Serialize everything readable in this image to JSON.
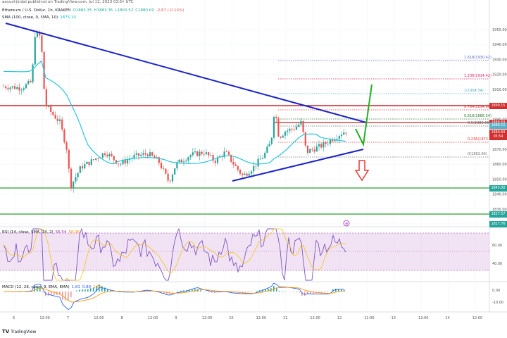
{
  "header": {
    "publisher_line": "aayushjindal published on TradingView.com, Jul 12, 2023 03:54 UTC"
  },
  "symbol_legend": {
    "name": "Ethereum / U.S. Dollar, 1h, KRAKEN",
    "open": "O1883.35",
    "high": "H1883.35",
    "low": "L1880.52",
    "close": "C1880.69",
    "change": "-2.67 (-0.14%)"
  },
  "sma_legend": {
    "label": "SMA (100, close, 0, SMA, 10)",
    "value": "1875.10"
  },
  "rsi_legend": {
    "label": "RSI (14, close, SMA, 14, 2)",
    "value1": "56.54",
    "value2": "58.96"
  },
  "macd_legend": {
    "label": "MACD (12, 26, close, 9, EMA, EMA)",
    "value1": "1.81",
    "value2": "0.80",
    "value3": "1.00"
  },
  "price_axis": {
    "ticks": [
      "1950.00",
      "1940.00",
      "1930.00",
      "1920.00",
      "1910.00",
      "1900.00",
      "1890.00",
      "1880.00",
      "1870.00",
      "1860.00",
      "1850.00",
      "1840.00",
      "1830.00",
      "1820.00"
    ],
    "badges": [
      {
        "text": "1899.15",
        "color": "#d32f2f"
      },
      {
        "text": "1888.69",
        "color": "#d32f2f"
      },
      {
        "text": "1886.15",
        "color": "#5ab1c9"
      },
      {
        "text": "1880.69",
        "color": "#d32f2f"
      },
      {
        "text": "05:54",
        "color": "#d32f2f"
      },
      {
        "text": "1845.00",
        "color": "#26a69a"
      },
      {
        "text": "1827.57",
        "color": "#26a69a"
      },
      {
        "text": "1817.76",
        "color": "#26a69a"
      }
    ]
  },
  "fib_levels": [
    {
      "label": "1.618(1930.42)",
      "color": "#5c6bc0"
    },
    {
      "label": "1.236(1914.42)",
      "color": "#e91e63"
    },
    {
      "label": "1(1904.54)",
      "color": "#5ab1c9"
    },
    {
      "label": "0.764(1894.66)",
      "color": "#e53935"
    },
    {
      "label": "0.618(1888.54)",
      "color": "#2e7d32"
    },
    {
      "label": "0.5(1883.60)",
      "color": "#616161"
    },
    {
      "label": "0.236(1872.54)",
      "color": "#e53935"
    },
    {
      "label": "0(1862.66)",
      "color": "#757575"
    }
  ],
  "rsi_axis": {
    "ticks": [
      "60.00",
      "40.00"
    ]
  },
  "macd_axis": {
    "ticks": [
      "0.00",
      "-10.00"
    ]
  },
  "time_axis": {
    "labels": [
      "6",
      "12:00",
      "7",
      "12:00",
      "8",
      "12:00",
      "9",
      "12:00",
      "10",
      "12:00",
      "11",
      "12:00",
      "12",
      "12:00",
      "13",
      "12:00",
      "14",
      "12:00"
    ]
  },
  "footer": {
    "brand": "TradingView"
  },
  "colors": {
    "bull": "#26a69a",
    "bear": "#ef5350",
    "sma": "#26c6da",
    "trend": "#1a23c9",
    "resistance": "#c62828",
    "support": "#2e9e2e",
    "rsi_band": "#e1bee7"
  }
}
